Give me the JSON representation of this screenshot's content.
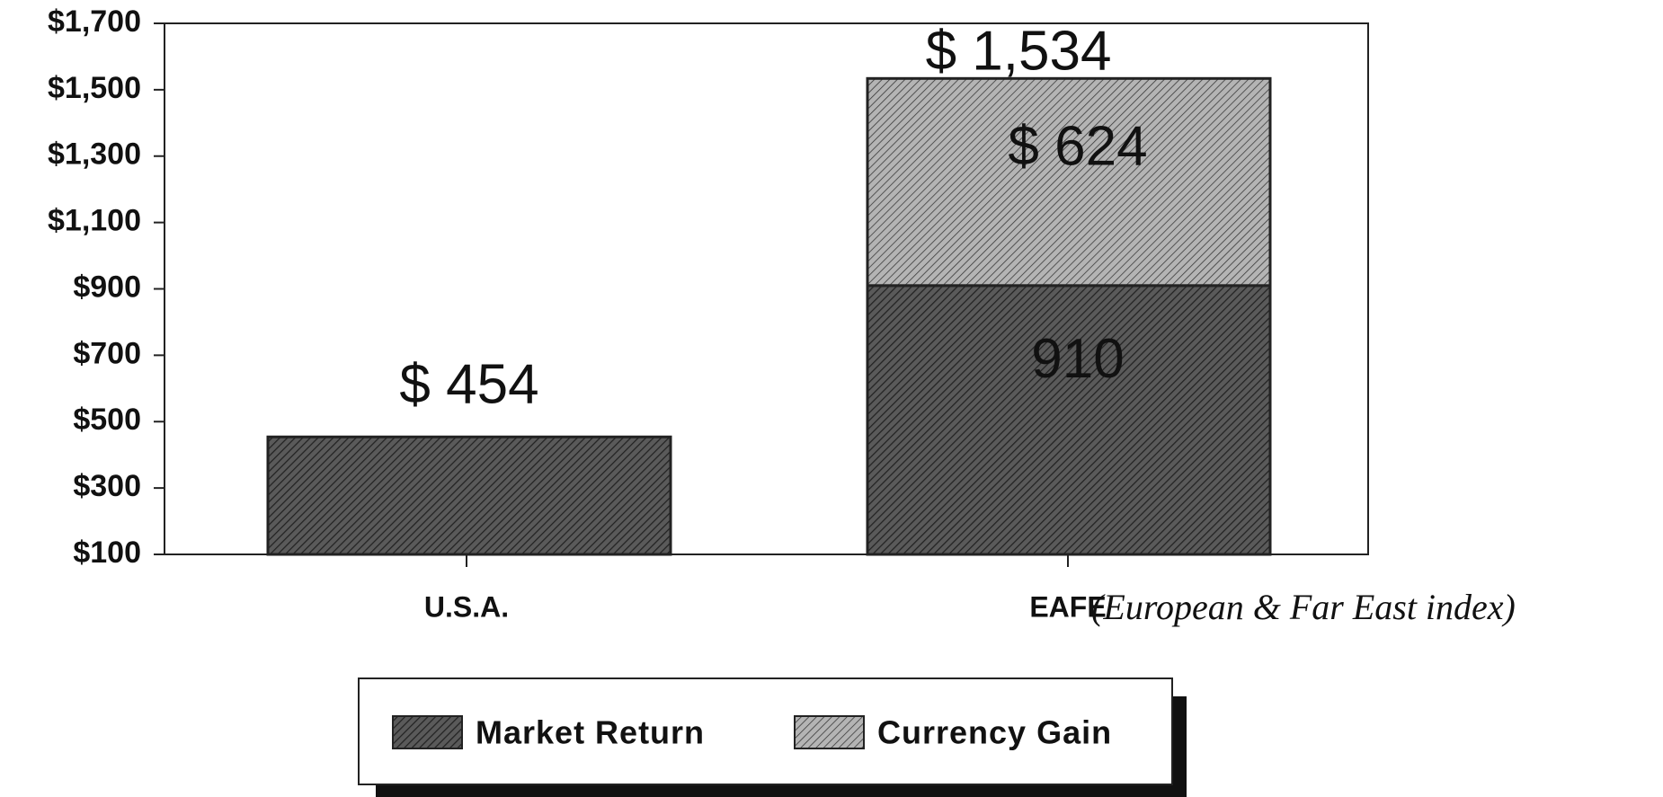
{
  "chart_data": {
    "type": "stacked_bar",
    "categories": [
      "U.S.A.",
      "EAFE"
    ],
    "series": [
      {
        "name": "Market Return",
        "color": "#5a5a5a",
        "values": [
          454,
          910
        ],
        "value_labels": [
          null,
          "910"
        ]
      },
      {
        "name": "Currency Gain",
        "color": "#b4b4b4",
        "values": [
          null,
          624
        ],
        "value_labels": [
          null,
          "$ 624"
        ]
      }
    ],
    "totals": {
      "values": [
        454,
        1534
      ],
      "labels": [
        "$ 454",
        "$ 1,534"
      ]
    },
    "annotation": "(European & Far East index)",
    "ylim": [
      100,
      1700
    ],
    "yticks": [
      {
        "value": 100,
        "label": "$100"
      },
      {
        "value": 300,
        "label": "$300"
      },
      {
        "value": 500,
        "label": "$500"
      },
      {
        "value": 700,
        "label": "$700"
      },
      {
        "value": 900,
        "label": "$900"
      },
      {
        "value": 1100,
        "label": "$1,100"
      },
      {
        "value": 1300,
        "label": "$1,300"
      },
      {
        "value": 1500,
        "label": "$1,500"
      },
      {
        "value": 1700,
        "label": "$1,700"
      }
    ],
    "legend": "bottom"
  }
}
